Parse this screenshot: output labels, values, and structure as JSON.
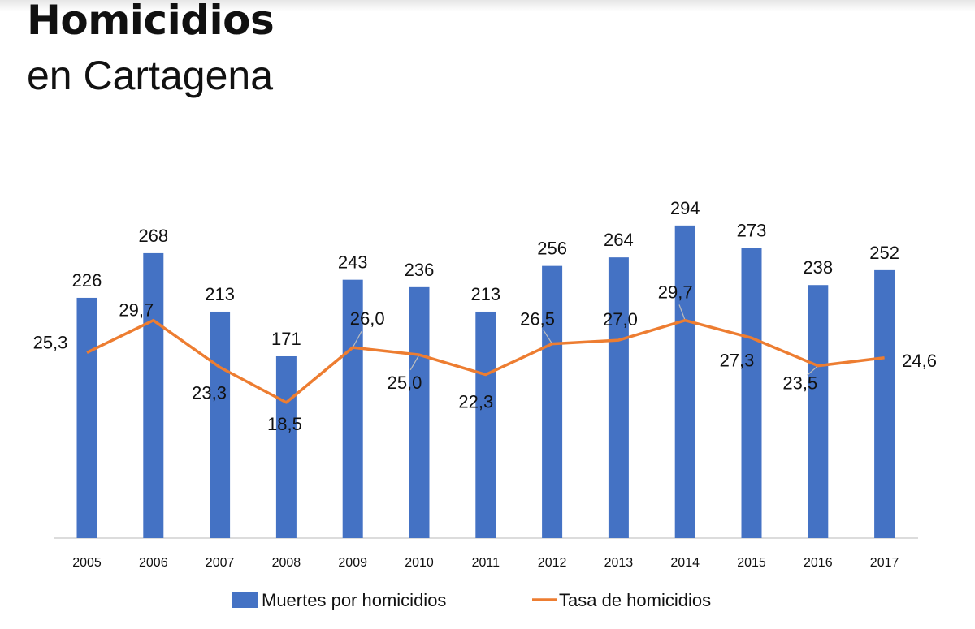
{
  "header": {
    "title": "Homicidios",
    "subtitle": "en Cartagena"
  },
  "chart_data": {
    "type": "bar+line",
    "title": "Homicidios en Cartagena",
    "categories": [
      "2005",
      "2006",
      "2007",
      "2008",
      "2009",
      "2010",
      "2011",
      "2012",
      "2013",
      "2014",
      "2015",
      "2016",
      "2017"
    ],
    "series": [
      {
        "name": "Muertes por homicidios",
        "type": "bar",
        "color": "#4472C4",
        "axis": "primary",
        "values": [
          226,
          268,
          213,
          171,
          243,
          236,
          213,
          256,
          264,
          294,
          273,
          238,
          252
        ],
        "labels": [
          "226",
          "268",
          "213",
          "171",
          "243",
          "236",
          "213",
          "256",
          "264",
          "294",
          "273",
          "238",
          "252"
        ]
      },
      {
        "name": "Tasa de homicidios",
        "type": "line",
        "color": "#ED7D31",
        "axis": "secondary",
        "values": [
          25.3,
          29.7,
          23.3,
          18.5,
          26.0,
          25.0,
          22.3,
          26.5,
          27.0,
          29.7,
          27.3,
          23.5,
          24.6
        ],
        "labels": [
          "25,3",
          "29,7",
          "23,3",
          "18,5",
          "26,0",
          "25,0",
          "22,3",
          "26,5",
          "27,0",
          "29,7",
          "27,3",
          "23,5",
          "24,6"
        ]
      }
    ],
    "ylim": [
      0,
      300
    ],
    "y2lim": [
      0,
      43.5
    ],
    "grid": false,
    "legend": "bottom"
  }
}
